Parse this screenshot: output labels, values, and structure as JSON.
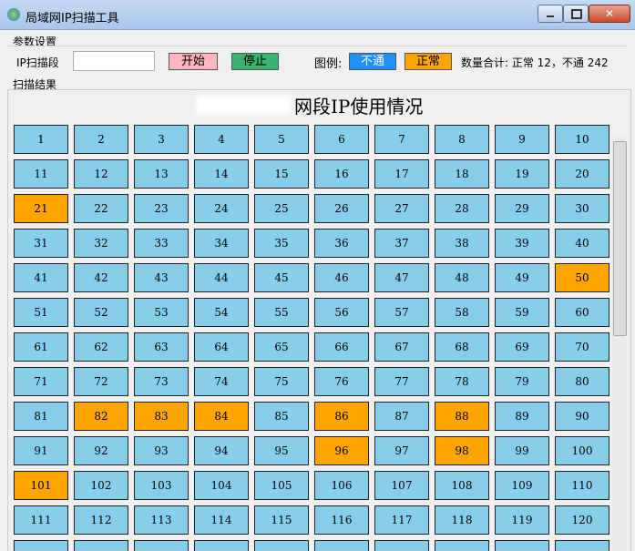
{
  "window": {
    "title": "局域网IP扫描工具"
  },
  "params": {
    "group_label": "参数设置",
    "ip_label": "IP扫描段",
    "start_button": "开始",
    "stop_button": "停止",
    "legend_label": "图例:",
    "legend_down": {
      "text": "不通",
      "color": "#1e90ff"
    },
    "legend_up": {
      "text": "正常",
      "color": "#ffa500"
    },
    "summary": "数量合计: 正常 12，不通 242"
  },
  "results": {
    "group_label": "扫描结果",
    "heading": "网段IP使用情况"
  },
  "grid": {
    "columns": 10,
    "cells": [
      1,
      2,
      3,
      4,
      5,
      6,
      7,
      8,
      9,
      10,
      11,
      12,
      13,
      14,
      15,
      16,
      17,
      18,
      19,
      20,
      21,
      22,
      23,
      24,
      25,
      26,
      27,
      28,
      29,
      30,
      31,
      32,
      33,
      34,
      35,
      36,
      37,
      38,
      39,
      40,
      41,
      42,
      43,
      44,
      45,
      46,
      47,
      48,
      49,
      50,
      51,
      52,
      53,
      54,
      55,
      56,
      57,
      58,
      59,
      60,
      61,
      62,
      63,
      64,
      65,
      66,
      67,
      68,
      69,
      70,
      71,
      72,
      73,
      74,
      75,
      76,
      77,
      78,
      79,
      80,
      81,
      82,
      83,
      84,
      85,
      86,
      87,
      88,
      89,
      90,
      91,
      92,
      93,
      94,
      95,
      96,
      97,
      98,
      99,
      100,
      101,
      102,
      103,
      104,
      105,
      106,
      107,
      108,
      109,
      110,
      111,
      112,
      113,
      114,
      115,
      116,
      117,
      118,
      119,
      120,
      null,
      null,
      null,
      null,
      null,
      null,
      null,
      null,
      null,
      null
    ],
    "cell_colors": [
      "#87ceeb",
      "#87ceeb",
      "#87ceeb",
      "#87ceeb",
      "#87ceeb",
      "#87ceeb",
      "#87ceeb",
      "#87ceeb",
      "#87ceeb",
      "#87ceeb",
      "#87ceeb",
      "#87ceeb",
      "#87ceeb",
      "#87ceeb",
      "#87ceeb",
      "#87ceeb",
      "#87ceeb",
      "#87ceeb",
      "#87ceeb",
      "#87ceeb",
      "#ffa500",
      "#87ceeb",
      "#87ceeb",
      "#87ceeb",
      "#87ceeb",
      "#87ceeb",
      "#87ceeb",
      "#87ceeb",
      "#87ceeb",
      "#87ceeb",
      "#87ceeb",
      "#87ceeb",
      "#87ceeb",
      "#87ceeb",
      "#87ceeb",
      "#87ceeb",
      "#87ceeb",
      "#87ceeb",
      "#87ceeb",
      "#87ceeb",
      "#87ceeb",
      "#87ceeb",
      "#87ceeb",
      "#87ceeb",
      "#87ceeb",
      "#87ceeb",
      "#87ceeb",
      "#87ceeb",
      "#87ceeb",
      "#ffa500",
      "#87ceeb",
      "#87ceeb",
      "#87ceeb",
      "#87ceeb",
      "#87ceeb",
      "#87ceeb",
      "#87ceeb",
      "#87ceeb",
      "#87ceeb",
      "#87ceeb",
      "#87ceeb",
      "#87ceeb",
      "#87ceeb",
      "#87ceeb",
      "#87ceeb",
      "#87ceeb",
      "#87ceeb",
      "#87ceeb",
      "#87ceeb",
      "#87ceeb",
      "#87ceeb",
      "#87ceeb",
      "#87ceeb",
      "#87ceeb",
      "#87ceeb",
      "#87ceeb",
      "#87ceeb",
      "#87ceeb",
      "#87ceeb",
      "#87ceeb",
      "#87ceeb",
      "#ffa500",
      "#ffa500",
      "#ffa500",
      "#87ceeb",
      "#ffa500",
      "#87ceeb",
      "#ffa500",
      "#87ceeb",
      "#87ceeb",
      "#87ceeb",
      "#87ceeb",
      "#87ceeb",
      "#87ceeb",
      "#87ceeb",
      "#ffa500",
      "#87ceeb",
      "#ffa500",
      "#87ceeb",
      "#87ceeb",
      "#ffa500",
      "#87ceeb",
      "#87ceeb",
      "#87ceeb",
      "#87ceeb",
      "#87ceeb",
      "#87ceeb",
      "#87ceeb",
      "#87ceeb",
      "#87ceeb",
      "#87ceeb",
      "#87ceeb",
      "#87ceeb",
      "#87ceeb",
      "#87ceeb",
      "#87ceeb",
      "#87ceeb",
      "#87ceeb",
      "#87ceeb",
      "#87ceeb",
      "#87ceeb",
      "#87ceeb",
      "#87ceeb",
      "#87ceeb",
      "#87ceeb",
      "#87ceeb",
      "#87ceeb",
      "#87ceeb",
      "#87ceeb",
      "#87ceeb"
    ]
  }
}
